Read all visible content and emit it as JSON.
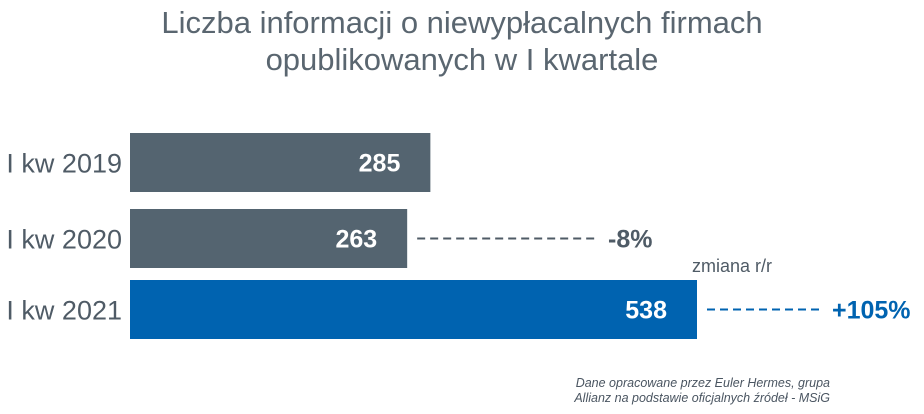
{
  "title_lines": [
    "Liczba informacji o niewypłacalnych firmach",
    "opublikowanych w I kwartale"
  ],
  "source_lines": [
    "Dane opracowane przez Euler Hermes, grupa",
    "Allianz na podstawie oficjalnych źródeł  - MSiG"
  ],
  "change_label": "zmiana r/r",
  "colors": {
    "gray_bar": "#546470",
    "blue_bar": "#0063b0",
    "label_gray": "#4f5b66",
    "dash_blue": "#0063b0"
  },
  "chart_data": {
    "type": "bar",
    "orientation": "horizontal",
    "categories": [
      "I kw 2019",
      "I kw 2020",
      "I kw 2021"
    ],
    "values": [
      285,
      263,
      538
    ],
    "value_labels": [
      "285",
      "263",
      "538"
    ],
    "changes": [
      null,
      "-8%",
      "+105%"
    ],
    "highlight_index": 2
  }
}
